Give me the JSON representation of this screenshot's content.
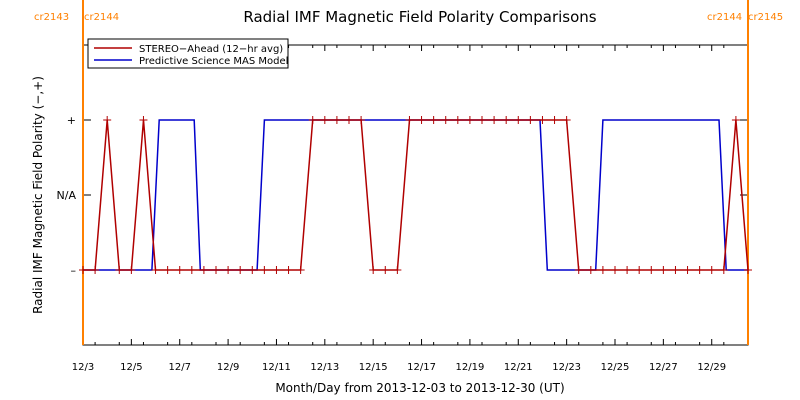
{
  "chart_data": {
    "type": "line",
    "title": "Radial IMF Magnetic Field Polarity Comparisons",
    "xlabel": "Month/Day from 2013-12-03 to 2013-12-30 (UT)",
    "ylabel": "Radial IMF Magnetic Field Polarity (−,+)",
    "x_start_date": "2013-12-03",
    "xlim_days": [
      0,
      27.5
    ],
    "x_ticks": [
      {
        "day": 0,
        "label": "12/3"
      },
      {
        "day": 2,
        "label": "12/5"
      },
      {
        "day": 4,
        "label": "12/7"
      },
      {
        "day": 6,
        "label": "12/9"
      },
      {
        "day": 8,
        "label": "12/11"
      },
      {
        "day": 10,
        "label": "12/13"
      },
      {
        "day": 12,
        "label": "12/15"
      },
      {
        "day": 14,
        "label": "12/17"
      },
      {
        "day": 16,
        "label": "12/19"
      },
      {
        "day": 18,
        "label": "12/21"
      },
      {
        "day": 20,
        "label": "12/23"
      },
      {
        "day": 22,
        "label": "12/25"
      },
      {
        "day": 24,
        "label": "12/27"
      },
      {
        "day": 26,
        "label": "12/29"
      }
    ],
    "ylim": [
      -2,
      2
    ],
    "y_ticks": [
      {
        "value": 1,
        "label": "+"
      },
      {
        "value": 0,
        "label": "N/A"
      },
      {
        "value": -1,
        "label": "–"
      }
    ],
    "carrington_markers": [
      {
        "day": 0,
        "left_label": "cr2143",
        "right_label": "cr2144",
        "color": "#ff8000"
      },
      {
        "day": 27.5,
        "left_label": "cr2144",
        "right_label": "cr2145",
        "color": "#ff8000"
      }
    ],
    "legend": {
      "placement": "top-left",
      "entries": [
        {
          "label": "STEREO−Ahead (12−hr avg)",
          "color": "#b00000"
        },
        {
          "label": "Predictive Science MAS Model",
          "color": "#0000cc"
        }
      ]
    },
    "series": [
      {
        "name": "STEREO−Ahead (12−hr avg)",
        "color": "#b00000",
        "markers": true,
        "x": [
          0,
          0.5,
          1,
          1.5,
          2,
          2.5,
          3,
          3.5,
          4,
          4.5,
          5,
          5.5,
          6,
          6.5,
          7,
          7.5,
          8,
          8.5,
          9,
          9.5,
          10,
          10.5,
          11,
          11.5,
          12,
          12.5,
          13,
          13.5,
          14,
          14.5,
          15,
          15.5,
          16,
          16.5,
          17,
          17.5,
          18,
          18.5,
          19,
          19.5,
          20,
          20.5,
          21,
          21.5,
          22,
          22.5,
          23,
          23.5,
          24,
          24.5,
          25,
          25.5,
          26,
          26.5,
          27,
          27.5
        ],
        "y": [
          -1,
          -1,
          1,
          -1,
          -1,
          1,
          -1,
          -1,
          -1,
          -1,
          -1,
          -1,
          -1,
          -1,
          -1,
          -1,
          -1,
          -1,
          -1,
          1,
          1,
          1,
          1,
          1,
          -1,
          -1,
          -1,
          1,
          1,
          1,
          1,
          1,
          1,
          1,
          1,
          1,
          1,
          1,
          1,
          1,
          1,
          -1,
          -1,
          -1,
          -1,
          -1,
          -1,
          -1,
          -1,
          -1,
          -1,
          -1,
          -1,
          -1,
          1,
          -1
        ]
      },
      {
        "name": "Predictive Science MAS Model",
        "color": "#0000cc",
        "markers": false,
        "x": [
          0,
          2.85,
          3.15,
          4.6,
          4.85,
          7.2,
          7.5,
          18.9,
          19.2,
          21.2,
          21.5,
          26.3,
          26.6,
          27.5
        ],
        "y": [
          -1,
          -1,
          1,
          1,
          -1,
          -1,
          1,
          1,
          -1,
          -1,
          1,
          1,
          -1,
          -1
        ]
      }
    ]
  }
}
